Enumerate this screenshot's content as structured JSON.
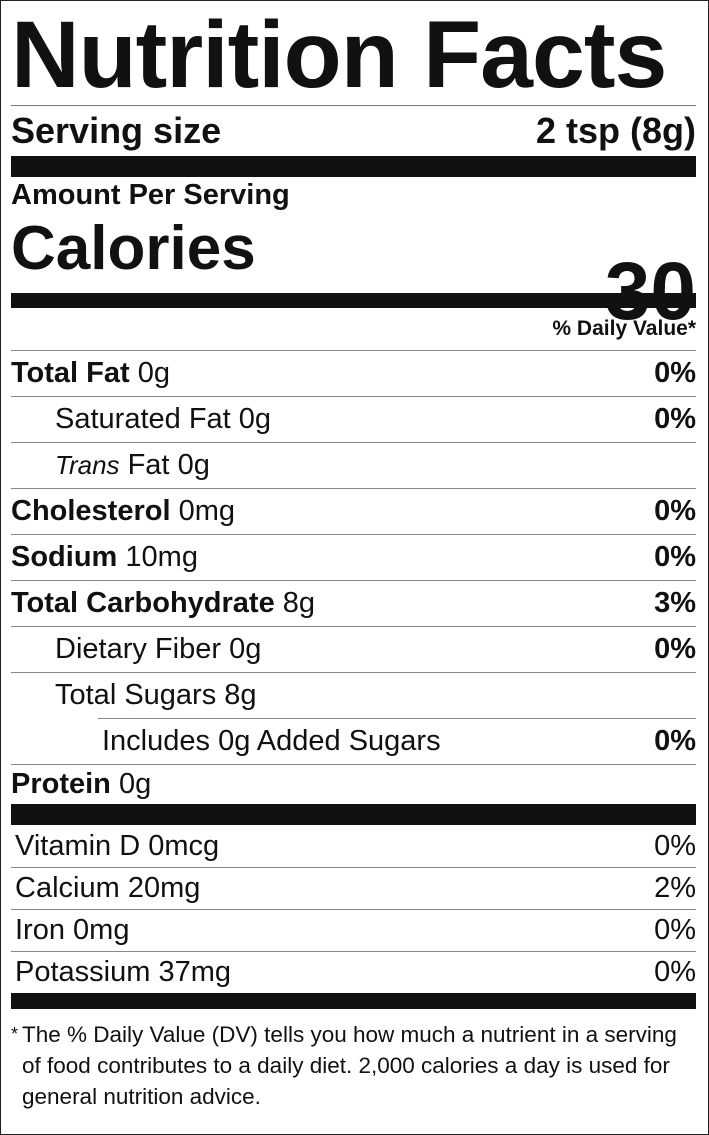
{
  "title": "Nutrition Facts",
  "serving": {
    "label": "Serving size",
    "value": "2 tsp (8g)"
  },
  "calories": {
    "header": "Amount Per Serving",
    "label": "Calories",
    "value": "30"
  },
  "dv_header": "% Daily Value*",
  "nutrients": [
    {
      "name": "Total Fat",
      "amount": "0g",
      "dv": "0%"
    },
    {
      "name": "Saturated Fat",
      "amount": "0g",
      "dv": "0%"
    },
    {
      "name": [
        "Trans",
        "Fat"
      ],
      "amount": "0g"
    },
    {
      "name": "Cholesterol",
      "amount": "0mg",
      "dv": "0%"
    },
    {
      "name": "Sodium",
      "amount": "10mg",
      "dv": "0%"
    },
    {
      "name": "Total Carbohydrate",
      "amount": "8g",
      "dv": "3%"
    },
    {
      "name": "Dietary Fiber",
      "amount": "0g",
      "dv": "0%"
    },
    {
      "name": "Total Sugars",
      "amount": "8g"
    },
    {
      "name": "Includes 0g Added Sugars",
      "dv": "0%"
    },
    {
      "name": "Protein",
      "amount": "0g"
    }
  ],
  "vitamins": [
    {
      "name": "Vitamin D",
      "amount": "0mcg",
      "dv": "0%"
    },
    {
      "name": "Calcium",
      "amount": "20mg",
      "dv": "2%"
    },
    {
      "name": "Iron",
      "amount": "0mg",
      "dv": "0%"
    },
    {
      "name": "Potassium",
      "amount": "37mg",
      "dv": "0%"
    }
  ],
  "footnote": {
    "mark": "*",
    "text": "The % Daily Value (DV) tells you how much a nutrient in a serving of food contributes to a daily diet. 2,000 calories a day is used for general nutrition advice."
  }
}
